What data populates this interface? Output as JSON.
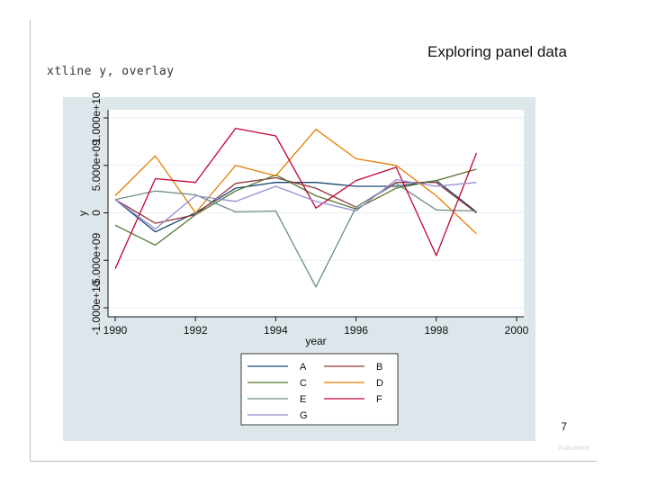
{
  "slide": {
    "title": "Exploring panel data",
    "command": "xtline y, overlay",
    "page_number": "7",
    "footer": "PUBLISHER"
  },
  "chart_data": {
    "type": "line",
    "x": [
      1990,
      1991,
      1992,
      1993,
      1994,
      1995,
      1996,
      1997,
      1998,
      1999
    ],
    "xlabel": "year",
    "ylabel": "y",
    "xlim": [
      1990,
      2000
    ],
    "xticks": [
      1990,
      1992,
      1994,
      1996,
      1998,
      2000
    ],
    "xtick_labels": [
      "1990",
      "1992",
      "1994",
      "1996",
      "1998",
      "2000"
    ],
    "ylim": [
      -10000000000.0,
      10000000000.0
    ],
    "yticks": [
      -10000000000.0,
      -5000000000.0,
      0,
      5000000000.0,
      10000000000.0
    ],
    "ytick_labels": [
      "-1.000e+10",
      "-5.000e+09",
      "0",
      "5.000e+09",
      "1.000e+10"
    ],
    "grid": true,
    "legend_position": "bottom",
    "series": [
      {
        "name": "A",
        "color": "#1a476f",
        "values": [
          1400000000.0,
          -2000000000.0,
          0.0,
          2600000000.0,
          3200000000.0,
          3200000000.0,
          2800000000.0,
          2800000000.0,
          3400000000.0,
          100000000.0
        ]
      },
      {
        "name": "B",
        "color": "#90353b",
        "values": [
          1400000000.0,
          -1100000000.0,
          -200000000.0,
          3100000000.0,
          3700000000.0,
          2600000000.0,
          600000000.0,
          3200000000.0,
          3200000000.0,
          0.0
        ]
      },
      {
        "name": "C",
        "color": "#55752f",
        "values": [
          -1300000000.0,
          -3400000000.0,
          -200000000.0,
          2300000000.0,
          4000000000.0,
          1800000000.0,
          400000000.0,
          2600000000.0,
          3400000000.0,
          4600000000.0
        ]
      },
      {
        "name": "D",
        "color": "#e37e00",
        "values": [
          1800000000.0,
          6000000000.0,
          0.0,
          5000000000.0,
          3900000000.0,
          8800000000.0,
          5700000000.0,
          5000000000.0,
          1800000000.0,
          -2200000000.0
        ]
      },
      {
        "name": "E",
        "color": "#6e8e84",
        "values": [
          1400000000.0,
          2300000000.0,
          1900000000.0,
          100000000.0,
          200000000.0,
          -7800000000.0,
          600000000.0,
          3100000000.0,
          300000000.0,
          200000000.0
        ]
      },
      {
        "name": "F",
        "color": "#c10534",
        "values": [
          -5900000000.0,
          3600000000.0,
          3200000000.0,
          8900000000.0,
          8100000000.0,
          500000000.0,
          3400000000.0,
          4800000000.0,
          -4500000000.0,
          6300000000.0
        ]
      },
      {
        "name": "G",
        "color": "#938dd2",
        "values": [
          1400000000.0,
          -1700000000.0,
          1800000000.0,
          1200000000.0,
          2800000000.0,
          1200000000.0,
          200000000.0,
          3500000000.0,
          2800000000.0,
          3200000000.0
        ]
      }
    ]
  }
}
